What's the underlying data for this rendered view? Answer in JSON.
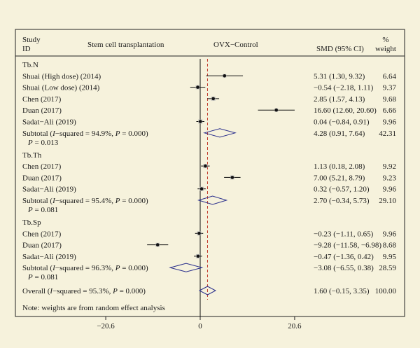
{
  "chart_data": {
    "type": "forest",
    "headers": {
      "study_id": [
        "Study",
        "ID"
      ],
      "left_group": "Stem cell transplantation",
      "right_group": "OVX−Control",
      "effect": "SMD (95% CI)",
      "weight": [
        "%",
        "weight"
      ]
    },
    "x_axis": {
      "ticks": [
        -20.6,
        0,
        20.6
      ],
      "tick_labels": [
        "−20.6",
        "0",
        "20.6"
      ],
      "xlim": [
        -20.6,
        20.6
      ],
      "null_line": 0,
      "overall_line": 1.6
    },
    "groups": [
      {
        "name": "Tb.N",
        "studies": [
          {
            "label": "Shuai (High dose) (2014)",
            "smd": 5.31,
            "lo": 1.3,
            "hi": 9.32,
            "ci_text": "5.31 (1.30, 9.32)",
            "weight": "6.64"
          },
          {
            "label": "Shuai (Low dose) (2014)",
            "smd": -0.54,
            "lo": -2.18,
            "hi": 1.11,
            "ci_text": "−0.54 (−2.18, 1.11)",
            "weight": "9.37"
          },
          {
            "label": "Chen (2017)",
            "smd": 2.85,
            "lo": 1.57,
            "hi": 4.13,
            "ci_text": "2.85 (1.57, 4.13)",
            "weight": "9.68"
          },
          {
            "label": "Duan (2017)",
            "smd": 16.6,
            "lo": 12.6,
            "hi": 20.6,
            "ci_text": "16.60 (12.60, 20.60)",
            "weight": "6.66"
          },
          {
            "label": "Sadat−Ali (2019)",
            "smd": 0.04,
            "lo": -0.84,
            "hi": 0.91,
            "ci_text": "0.04 (−0.84, 0.91)",
            "weight": "9.96"
          }
        ],
        "subtotal": {
          "label_prefix": "Subtotal (",
          "i2_symbol": "I",
          "label_mid": "−squared = 94.9%, ",
          "p_symbol": "P",
          "label_suffix": " = 0.000)",
          "p_line_symbol": "P",
          "p_line": " = 0.013",
          "smd": 4.28,
          "lo": 0.91,
          "hi": 7.64,
          "ci_text": "4.28 (0.91, 7.64)",
          "weight": "42.31"
        }
      },
      {
        "name": "Tb.Th",
        "studies": [
          {
            "label": "Chen (2017)",
            "smd": 1.13,
            "lo": 0.18,
            "hi": 2.08,
            "ci_text": "1.13 (0.18, 2.08)",
            "weight": "9.92"
          },
          {
            "label": "Duan (2017)",
            "smd": 7.0,
            "lo": 5.21,
            "hi": 8.79,
            "ci_text": "7.00 (5.21, 8.79)",
            "weight": "9.23"
          },
          {
            "label": "Sadat−Ali (2019)",
            "smd": 0.32,
            "lo": -0.57,
            "hi": 1.2,
            "ci_text": "0.32 (−0.57, 1.20)",
            "weight": "9.96"
          }
        ],
        "subtotal": {
          "label_prefix": "Subtotal (",
          "i2_symbol": "I",
          "label_mid": "−squared = 95.4%, ",
          "p_symbol": "P",
          "label_suffix": " = 0.000)",
          "p_line_symbol": "P",
          "p_line": " = 0.081",
          "smd": 2.7,
          "lo": -0.34,
          "hi": 5.73,
          "ci_text": "2.70 (−0.34, 5.73)",
          "weight": "29.10"
        }
      },
      {
        "name": "Tb.Sp",
        "studies": [
          {
            "label": "Chen (2017)",
            "smd": -0.23,
            "lo": -1.11,
            "hi": 0.65,
            "ci_text": "−0.23 (−1.11, 0.65)",
            "weight": "9.96"
          },
          {
            "label": "Duan (2017)",
            "smd": -9.28,
            "lo": -11.58,
            "hi": -6.98,
            "ci_text": "−9.28 (−11.58, −6.98)",
            "weight": "8.68"
          },
          {
            "label": "Sadat−Ali (2019)",
            "smd": -0.47,
            "lo": -1.36,
            "hi": 0.42,
            "ci_text": "−0.47 (−1.36, 0.42)",
            "weight": "9.95"
          }
        ],
        "subtotal": {
          "label_prefix": "Subtotal (",
          "i2_symbol": "I",
          "label_mid": "−squared = 96.3%, ",
          "p_symbol": "P",
          "label_suffix": " = 0.000)",
          "p_line_symbol": "P",
          "p_line": " = 0.081",
          "smd": -3.08,
          "lo": -6.55,
          "hi": 0.38,
          "ci_text": "−3.08 (−6.55, 0.38)",
          "weight": "28.59"
        }
      }
    ],
    "overall": {
      "label_prefix": "Overall (",
      "i2_symbol": "I",
      "label_mid": "−squared = 95.3%, ",
      "p_symbol": "P",
      "label_suffix": " = 0.000)",
      "smd": 1.6,
      "lo": -0.15,
      "hi": 3.35,
      "ci_text": "1.60 (−0.15, 3.35)",
      "weight": "100.00"
    },
    "note": "Note: weights are from random effect analysis",
    "colors": {
      "background": "#f6f2dc",
      "diamond": "#2a2f8c",
      "overall_line": "#c0392b",
      "marker": "#111111"
    }
  }
}
